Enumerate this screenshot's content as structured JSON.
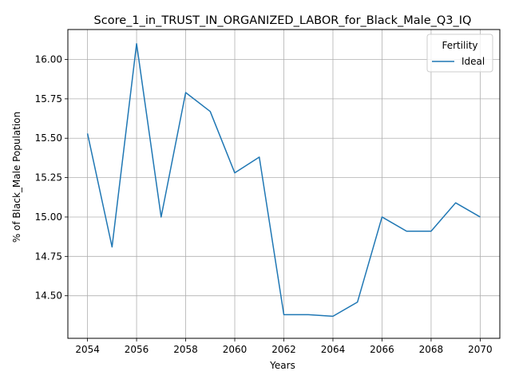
{
  "chart_data": {
    "type": "line",
    "title": "Score_1_in_TRUST_IN_ORGANIZED_LABOR_for_Black_Male_Q3_IQ",
    "xlabel": "Years",
    "ylabel": "% of Black_Male Population",
    "xlim": [
      2053.2,
      2070.8
    ],
    "ylim": [
      14.23,
      16.19
    ],
    "xticks": [
      2054,
      2056,
      2058,
      2060,
      2062,
      2064,
      2066,
      2068,
      2070
    ],
    "yticks": [
      14.5,
      14.75,
      15.0,
      15.25,
      15.5,
      15.75,
      16.0
    ],
    "ytick_labels": [
      "14.50",
      "14.75",
      "15.00",
      "15.25",
      "15.50",
      "15.75",
      "16.00"
    ],
    "grid": true,
    "legend": {
      "title": "Fertility",
      "placement": "top-right"
    },
    "series": [
      {
        "name": "Ideal",
        "color": "#1f77b4",
        "x": [
          2054,
          2055,
          2056,
          2057,
          2058,
          2059,
          2060,
          2061,
          2062,
          2063,
          2064,
          2065,
          2066,
          2067,
          2068,
          2069,
          2070
        ],
        "y": [
          15.53,
          14.81,
          16.1,
          15.0,
          15.79,
          15.67,
          15.28,
          15.38,
          14.38,
          14.38,
          14.37,
          14.46,
          15.0,
          14.91,
          14.91,
          15.09,
          15.0
        ]
      }
    ]
  }
}
